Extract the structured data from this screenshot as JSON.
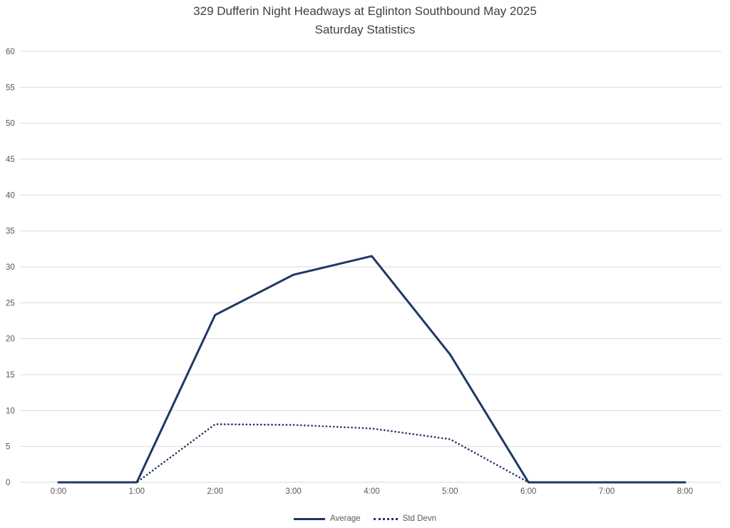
{
  "chart_data": {
    "type": "line",
    "title": "329 Dufferin Night Headways at Eglinton Southbound May 2025",
    "subtitle": "Saturday Statistics",
    "xlabel": "",
    "ylabel": "",
    "x_categories": [
      "0:00",
      "1:00",
      "2:00",
      "3:00",
      "4:00",
      "5:00",
      "6:00",
      "7:00",
      "8:00"
    ],
    "series": [
      {
        "name": "Average",
        "style": "solid",
        "values": [
          0,
          0,
          23.3,
          28.9,
          31.5,
          17.8,
          0,
          0,
          0
        ]
      },
      {
        "name": "Std Devn",
        "style": "dotted",
        "values": [
          0,
          0,
          8.1,
          8.0,
          7.5,
          6.0,
          0,
          0,
          0
        ]
      }
    ],
    "ylim": [
      0,
      60
    ],
    "ytick_step": 5,
    "grid": true,
    "legend_position": "bottom",
    "colors": {
      "line": "#1F3864",
      "gridline": "#D9D9D9",
      "title_text": "#404040",
      "tick_text": "#595959"
    }
  }
}
